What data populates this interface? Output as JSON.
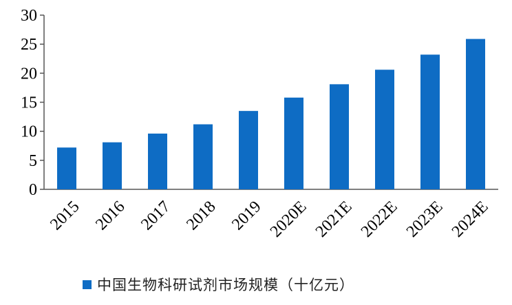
{
  "chart_data": {
    "type": "bar",
    "categories": [
      "2015",
      "2016",
      "2017",
      "2018",
      "2019",
      "2020E",
      "2021E",
      "2022E",
      "2023E",
      "2024E"
    ],
    "series": [
      {
        "name": "中国生物科研试剂市场规模（十亿元）",
        "values": [
          7.2,
          8.1,
          9.6,
          11.2,
          13.5,
          15.8,
          18.1,
          20.6,
          23.2,
          25.9
        ],
        "color": "#0e6cc4"
      }
    ],
    "y_ticks": [
      "0",
      "5",
      "10",
      "15",
      "20",
      "25",
      "30"
    ],
    "ylim": [
      0,
      30
    ],
    "grid": false,
    "legend_position": "bottom"
  }
}
